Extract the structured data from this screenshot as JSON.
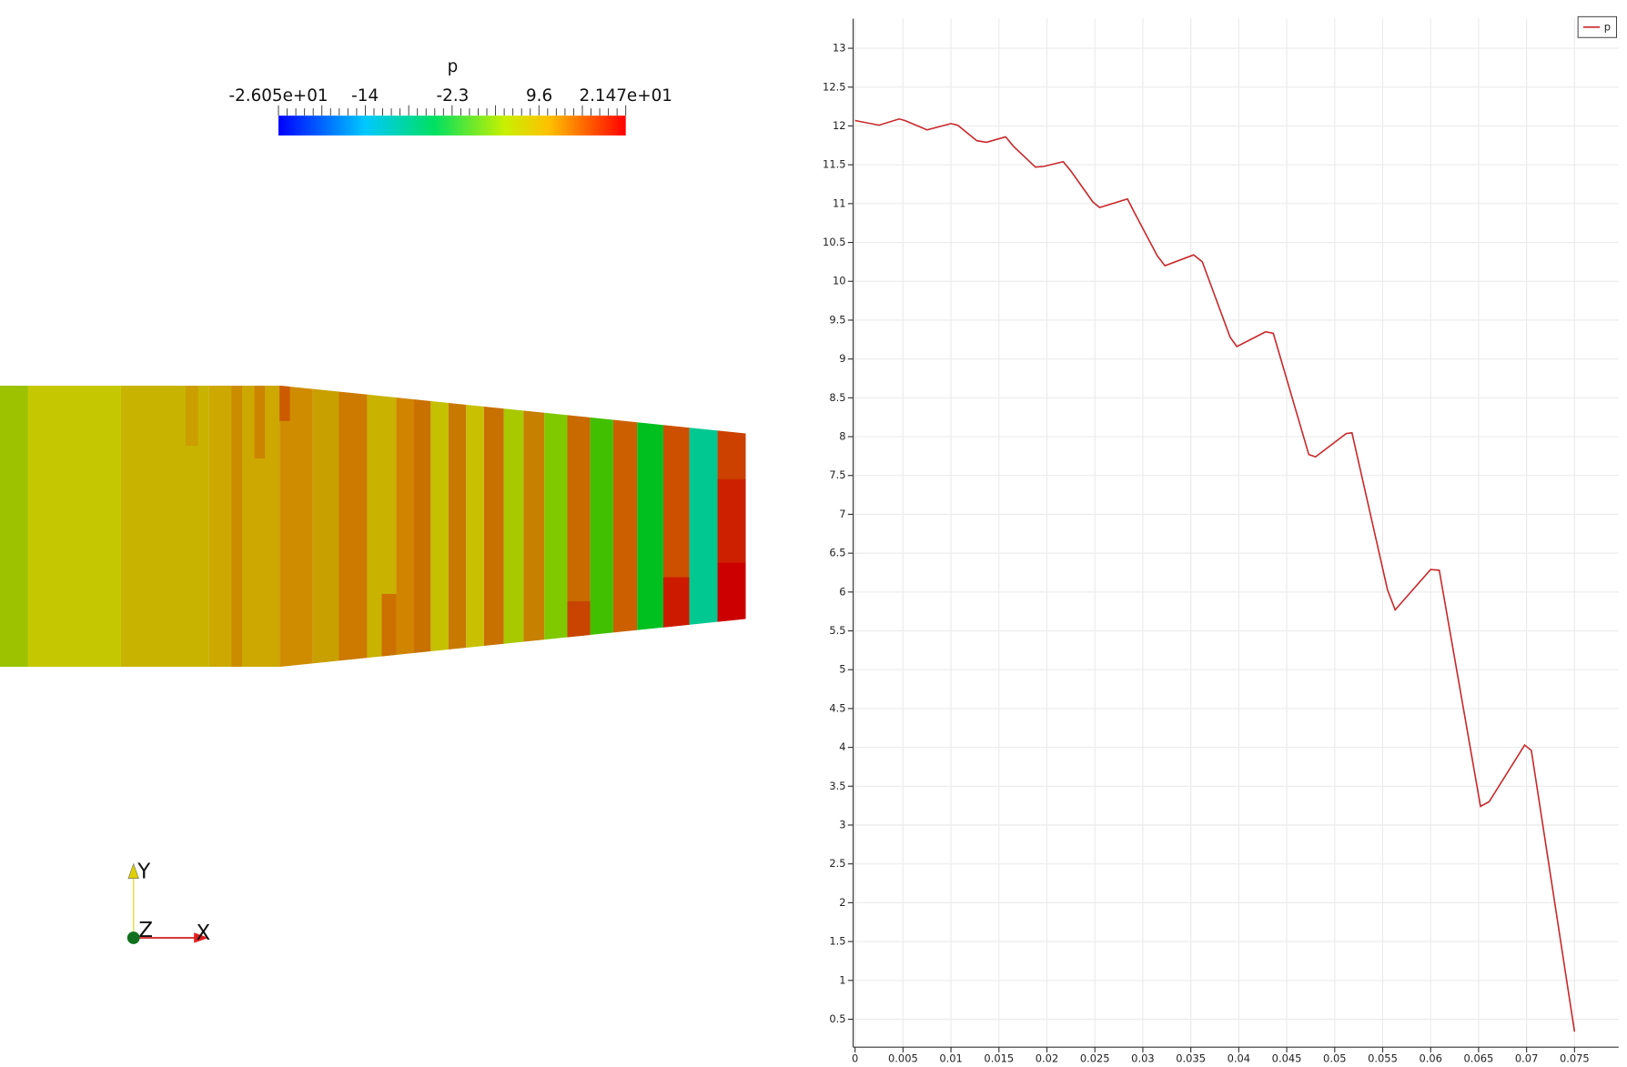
{
  "colorbar": {
    "title": "p",
    "labels": [
      "-2.605e+01",
      "-14",
      "-2.3",
      "9.6",
      "2.147e+01"
    ]
  },
  "axes": {
    "x": "X",
    "y": "Y",
    "z": "Z"
  },
  "chart_data": {
    "type": "line",
    "x": [
      0,
      0.0025,
      0.0046,
      0.0052,
      0.0075,
      0.01,
      0.0107,
      0.0127,
      0.0137,
      0.0157,
      0.0165,
      0.0188,
      0.0197,
      0.0217,
      0.0225,
      0.0248,
      0.0255,
      0.0284,
      0.0291,
      0.0315,
      0.0323,
      0.0353,
      0.0362,
      0.0391,
      0.0398,
      0.0428,
      0.0436,
      0.0473,
      0.048,
      0.0512,
      0.0518,
      0.0555,
      0.0563,
      0.06,
      0.0609,
      0.0652,
      0.0661,
      0.0698,
      0.0705,
      0.075
    ],
    "series": [
      {
        "name": "p",
        "color": "#c8282b",
        "values": [
          12.07,
          12.01,
          12.09,
          12.07,
          11.95,
          12.03,
          12.01,
          11.81,
          11.79,
          11.86,
          11.74,
          11.47,
          11.48,
          11.54,
          11.42,
          11.02,
          10.95,
          11.06,
          10.89,
          10.33,
          10.2,
          10.34,
          10.25,
          9.28,
          9.16,
          9.35,
          9.33,
          7.77,
          7.74,
          8.04,
          8.05,
          6.03,
          5.77,
          6.29,
          6.28,
          3.24,
          3.3,
          4.03,
          3.96,
          0.34
        ]
      }
    ],
    "xlim": [
      -0.0002,
      0.0796
    ],
    "ylim": [
      0.14,
      13.38
    ],
    "xticks": [
      0,
      0.005,
      0.01,
      0.015,
      0.02,
      0.025,
      0.03,
      0.035,
      0.04,
      0.045,
      0.05,
      0.055,
      0.06,
      0.065,
      0.07,
      0.075
    ],
    "yticks": [
      0.5,
      1,
      1.5,
      2,
      2.5,
      3,
      3.5,
      4,
      4.5,
      5,
      5.5,
      6,
      6.5,
      7,
      7.5,
      8,
      8.5,
      9,
      9.5,
      10,
      10.5,
      11,
      11.5,
      12,
      12.5,
      13
    ],
    "grid": true,
    "legend": "upper right"
  }
}
